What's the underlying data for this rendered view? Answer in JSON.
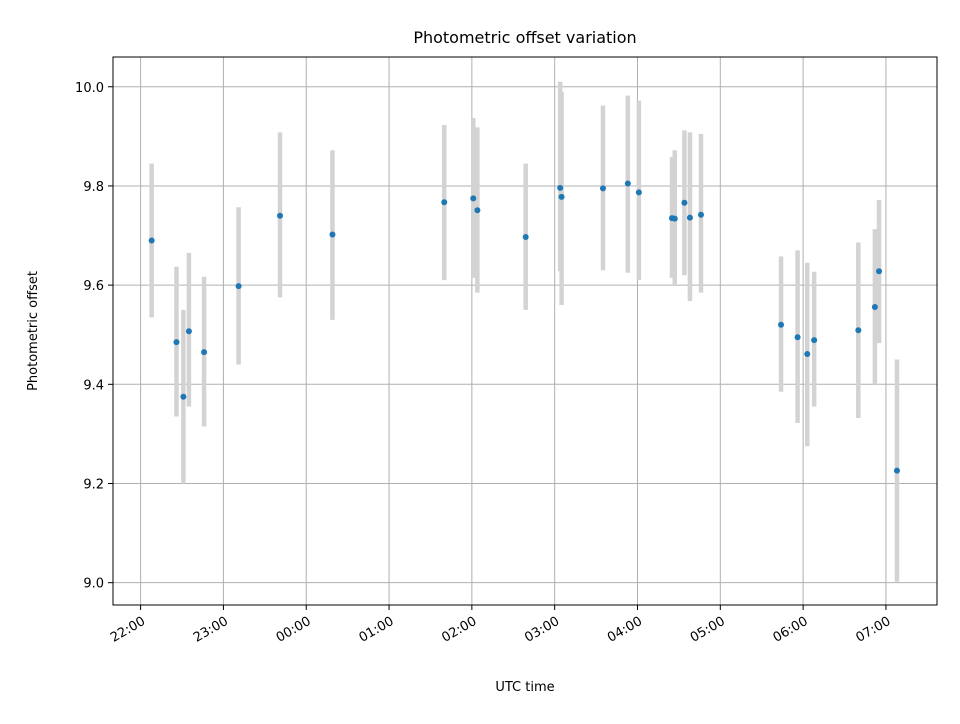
{
  "chart_data": {
    "type": "scatter",
    "title": "Photometric offset variation",
    "xlabel": "UTC time",
    "ylabel": "Photometric offset",
    "xlim": [
      "2023-01-01T21:40",
      "2023-01-02T07:37"
    ],
    "ylim": [
      8.955,
      10.06
    ],
    "grid": true,
    "x_ticks": [
      "22:00",
      "23:00",
      "00:00",
      "01:00",
      "02:00",
      "03:00",
      "04:00",
      "05:00",
      "06:00",
      "07:00"
    ],
    "x_tick_times": [
      "2023-01-01T22:00",
      "2023-01-01T23:00",
      "2023-01-02T00:00",
      "2023-01-02T01:00",
      "2023-01-02T02:00",
      "2023-01-02T03:00",
      "2023-01-02T04:00",
      "2023-01-02T05:00",
      "2023-01-02T06:00",
      "2023-01-02T07:00"
    ],
    "y_ticks": [
      9.0,
      9.2,
      9.4,
      9.6,
      9.8,
      10.0
    ],
    "point_color": "#1f77b4",
    "errorbar_color": "#d3d3d3",
    "points": [
      {
        "x": "2023-01-01T22:08",
        "y": 9.69,
        "lo": 9.535,
        "hi": 9.845
      },
      {
        "x": "2023-01-01T22:26",
        "y": 9.485,
        "lo": 9.335,
        "hi": 9.637
      },
      {
        "x": "2023-01-01T22:31",
        "y": 9.375,
        "lo": 9.2,
        "hi": 9.55
      },
      {
        "x": "2023-01-01T22:35",
        "y": 9.507,
        "lo": 9.355,
        "hi": 9.665
      },
      {
        "x": "2023-01-01T22:46",
        "y": 9.465,
        "lo": 9.315,
        "hi": 9.617
      },
      {
        "x": "2023-01-01T23:11",
        "y": 9.598,
        "lo": 9.44,
        "hi": 9.757
      },
      {
        "x": "2023-01-01T23:41",
        "y": 9.74,
        "lo": 9.575,
        "hi": 9.908
      },
      {
        "x": "2023-01-02T00:19",
        "y": 9.702,
        "lo": 9.53,
        "hi": 9.872
      },
      {
        "x": "2023-01-02T01:40",
        "y": 9.767,
        "lo": 9.61,
        "hi": 9.923
      },
      {
        "x": "2023-01-02T02:01",
        "y": 9.775,
        "lo": 9.615,
        "hi": 9.937
      },
      {
        "x": "2023-01-02T02:04",
        "y": 9.751,
        "lo": 9.585,
        "hi": 9.918
      },
      {
        "x": "2023-01-02T02:39",
        "y": 9.697,
        "lo": 9.55,
        "hi": 9.845
      },
      {
        "x": "2023-01-02T03:04",
        "y": 9.796,
        "lo": 9.628,
        "hi": 10.01
      },
      {
        "x": "2023-01-02T03:05",
        "y": 9.778,
        "lo": 9.56,
        "hi": 9.99
      },
      {
        "x": "2023-01-02T03:35",
        "y": 9.795,
        "lo": 9.63,
        "hi": 9.962
      },
      {
        "x": "2023-01-02T03:53",
        "y": 9.805,
        "lo": 9.625,
        "hi": 9.982
      },
      {
        "x": "2023-01-02T04:01",
        "y": 9.787,
        "lo": 9.61,
        "hi": 9.972
      },
      {
        "x": "2023-01-02T04:25",
        "y": 9.735,
        "lo": 9.615,
        "hi": 9.858
      },
      {
        "x": "2023-01-02T04:27",
        "y": 9.734,
        "lo": 9.6,
        "hi": 9.872
      },
      {
        "x": "2023-01-02T04:34",
        "y": 9.766,
        "lo": 9.62,
        "hi": 9.912
      },
      {
        "x": "2023-01-02T04:38",
        "y": 9.736,
        "lo": 9.568,
        "hi": 9.908
      },
      {
        "x": "2023-01-02T04:46",
        "y": 9.742,
        "lo": 9.585,
        "hi": 9.905
      },
      {
        "x": "2023-01-02T05:44",
        "y": 9.52,
        "lo": 9.385,
        "hi": 9.658
      },
      {
        "x": "2023-01-02T05:56",
        "y": 9.495,
        "lo": 9.322,
        "hi": 9.67
      },
      {
        "x": "2023-01-02T06:03",
        "y": 9.461,
        "lo": 9.275,
        "hi": 9.645
      },
      {
        "x": "2023-01-02T06:08",
        "y": 9.489,
        "lo": 9.355,
        "hi": 9.627
      },
      {
        "x": "2023-01-02T06:40",
        "y": 9.509,
        "lo": 9.332,
        "hi": 9.686
      },
      {
        "x": "2023-01-02T06:52",
        "y": 9.556,
        "lo": 9.4,
        "hi": 9.713
      },
      {
        "x": "2023-01-02T06:55",
        "y": 9.628,
        "lo": 9.483,
        "hi": 9.772
      },
      {
        "x": "2023-01-02T07:08",
        "y": 9.226,
        "lo": 9.002,
        "hi": 9.45
      }
    ]
  }
}
